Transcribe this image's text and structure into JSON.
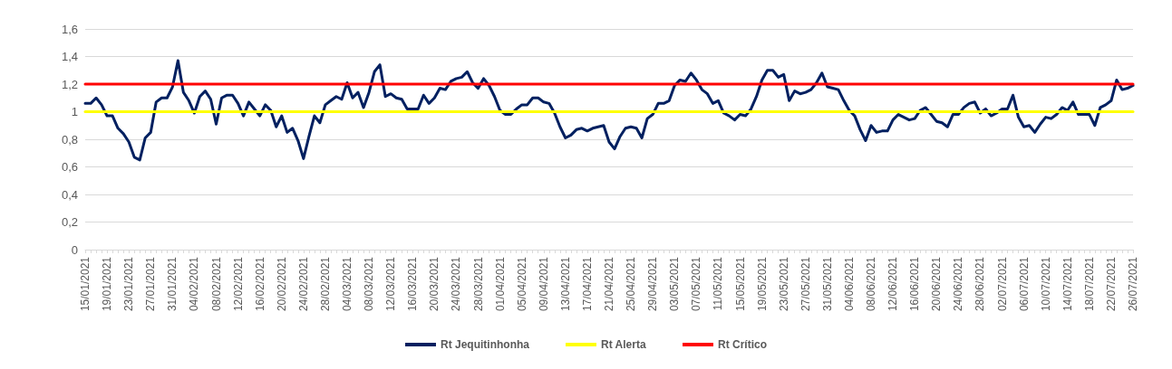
{
  "chart_data": {
    "type": "line",
    "categories": [
      "15/01/2021",
      null,
      null,
      null,
      "19/01/2021",
      null,
      null,
      null,
      "23/01/2021",
      null,
      null,
      null,
      "27/01/2021",
      null,
      null,
      null,
      "31/01/2021",
      null,
      null,
      null,
      "04/02/2021",
      null,
      null,
      null,
      "08/02/2021",
      null,
      null,
      null,
      "12/02/2021",
      null,
      null,
      null,
      "16/02/2021",
      null,
      null,
      null,
      "20/02/2021",
      null,
      null,
      null,
      "24/02/2021",
      null,
      null,
      null,
      "28/02/2021",
      null,
      null,
      null,
      "04/03/2021",
      null,
      null,
      null,
      "08/03/2021",
      null,
      null,
      null,
      "12/03/2021",
      null,
      null,
      null,
      "16/03/2021",
      null,
      null,
      null,
      "20/03/2021",
      null,
      null,
      null,
      "24/03/2021",
      null,
      null,
      null,
      "28/03/2021",
      null,
      null,
      null,
      "01/04/2021",
      null,
      null,
      null,
      "05/04/2021",
      null,
      null,
      null,
      "09/04/2021",
      null,
      null,
      null,
      "13/04/2021",
      null,
      null,
      null,
      "17/04/2021",
      null,
      null,
      null,
      "21/04/2021",
      null,
      null,
      null,
      "25/04/2021",
      null,
      null,
      null,
      "29/04/2021",
      null,
      null,
      null,
      "03/05/2021",
      null,
      null,
      null,
      "07/05/2021",
      null,
      null,
      null,
      "11/05/2021",
      null,
      null,
      null,
      "15/05/2021",
      null,
      null,
      null,
      "19/05/2021",
      null,
      null,
      null,
      "23/05/2021",
      null,
      null,
      null,
      "27/05/2021",
      null,
      null,
      null,
      "31/05/2021",
      null,
      null,
      null,
      "04/06/2021",
      null,
      null,
      null,
      "08/06/2021",
      null,
      null,
      null,
      "12/06/2021",
      null,
      null,
      null,
      "16/06/2021",
      null,
      null,
      null,
      "20/06/2021",
      null,
      null,
      null,
      "24/06/2021",
      null,
      null,
      null,
      "28/06/2021",
      null,
      null,
      null,
      "02/07/2021",
      null,
      null,
      null,
      "06/07/2021",
      null,
      null,
      null,
      "10/07/2021",
      null,
      null,
      null,
      "14/07/2021",
      null,
      null,
      null,
      "18/07/2021",
      null,
      null,
      null,
      "22/07/2021",
      null,
      null,
      null,
      "26/07/2021"
    ],
    "series": [
      {
        "name": "Rt Jequitinhonha",
        "color": "#002060",
        "values": [
          1.06,
          1.06,
          1.1,
          1.05,
          0.97,
          0.97,
          0.88,
          0.84,
          0.78,
          0.67,
          0.65,
          0.81,
          0.85,
          1.07,
          1.1,
          1.1,
          1.18,
          1.37,
          1.14,
          1.08,
          0.99,
          1.11,
          1.15,
          1.09,
          0.91,
          1.1,
          1.12,
          1.12,
          1.06,
          0.97,
          1.07,
          1.02,
          0.97,
          1.05,
          1.01,
          0.89,
          0.97,
          0.85,
          0.88,
          0.79,
          0.66,
          0.82,
          0.97,
          0.92,
          1.05,
          1.08,
          1.11,
          1.09,
          1.21,
          1.1,
          1.14,
          1.03,
          1.14,
          1.29,
          1.34,
          1.11,
          1.13,
          1.1,
          1.09,
          1.02,
          1.02,
          1.02,
          1.12,
          1.06,
          1.1,
          1.17,
          1.16,
          1.22,
          1.24,
          1.25,
          1.29,
          1.21,
          1.17,
          1.24,
          1.19,
          1.11,
          1.01,
          0.98,
          0.98,
          1.02,
          1.05,
          1.05,
          1.1,
          1.1,
          1.07,
          1.06,
          0.99,
          0.89,
          0.81,
          0.83,
          0.87,
          0.88,
          0.86,
          0.88,
          0.89,
          0.9,
          0.78,
          0.73,
          0.82,
          0.88,
          0.89,
          0.88,
          0.81,
          0.95,
          0.98,
          1.06,
          1.06,
          1.08,
          1.19,
          1.23,
          1.22,
          1.28,
          1.23,
          1.16,
          1.13,
          1.06,
          1.08,
          0.99,
          0.97,
          0.94,
          0.98,
          0.97,
          1.02,
          1.11,
          1.23,
          1.3,
          1.3,
          1.25,
          1.27,
          1.08,
          1.15,
          1.13,
          1.14,
          1.16,
          1.21,
          1.28,
          1.18,
          1.17,
          1.16,
          1.08,
          1.01,
          0.97,
          0.87,
          0.79,
          0.9,
          0.85,
          0.86,
          0.86,
          0.94,
          0.98,
          0.96,
          0.94,
          0.95,
          1.01,
          1.03,
          0.98,
          0.93,
          0.92,
          0.89,
          0.98,
          0.98,
          1.03,
          1.06,
          1.07,
          0.99,
          1.02,
          0.97,
          0.99,
          1.02,
          1.02,
          1.12,
          0.96,
          0.89,
          0.9,
          0.85,
          0.91,
          0.96,
          0.95,
          0.98,
          1.03,
          1.01,
          1.07,
          0.98,
          0.98,
          0.98,
          0.9,
          1.03,
          1.05,
          1.08,
          1.23,
          1.16,
          1.17,
          1.19
        ]
      },
      {
        "name": "Rt Alerta",
        "color": "#ffff00",
        "x": [
          "15/01/2021",
          "26/07/2021"
        ],
        "values": [
          1,
          1
        ]
      },
      {
        "name": "Rt Crítico",
        "color": "#ff0000",
        "x": [
          "15/01/2021",
          "26/07/2021"
        ],
        "values": [
          1.2,
          1.2
        ]
      }
    ],
    "ylim": [
      0,
      1.6
    ],
    "yticks": [
      0,
      {
        "value": 0.2,
        "label": "0,2"
      },
      {
        "value": 0.4,
        "label": "0,4"
      },
      {
        "value": 0.6,
        "label": "0,6"
      },
      {
        "value": 0.8,
        "label": "0,8"
      },
      1,
      {
        "value": 1.2,
        "label": "1,2"
      },
      {
        "value": 1.4,
        "label": "1,4"
      },
      {
        "value": 1.6,
        "label": "1,6"
      }
    ],
    "grid": "y",
    "legend": "bottom",
    "marker": "none",
    "line_style": "solid"
  }
}
